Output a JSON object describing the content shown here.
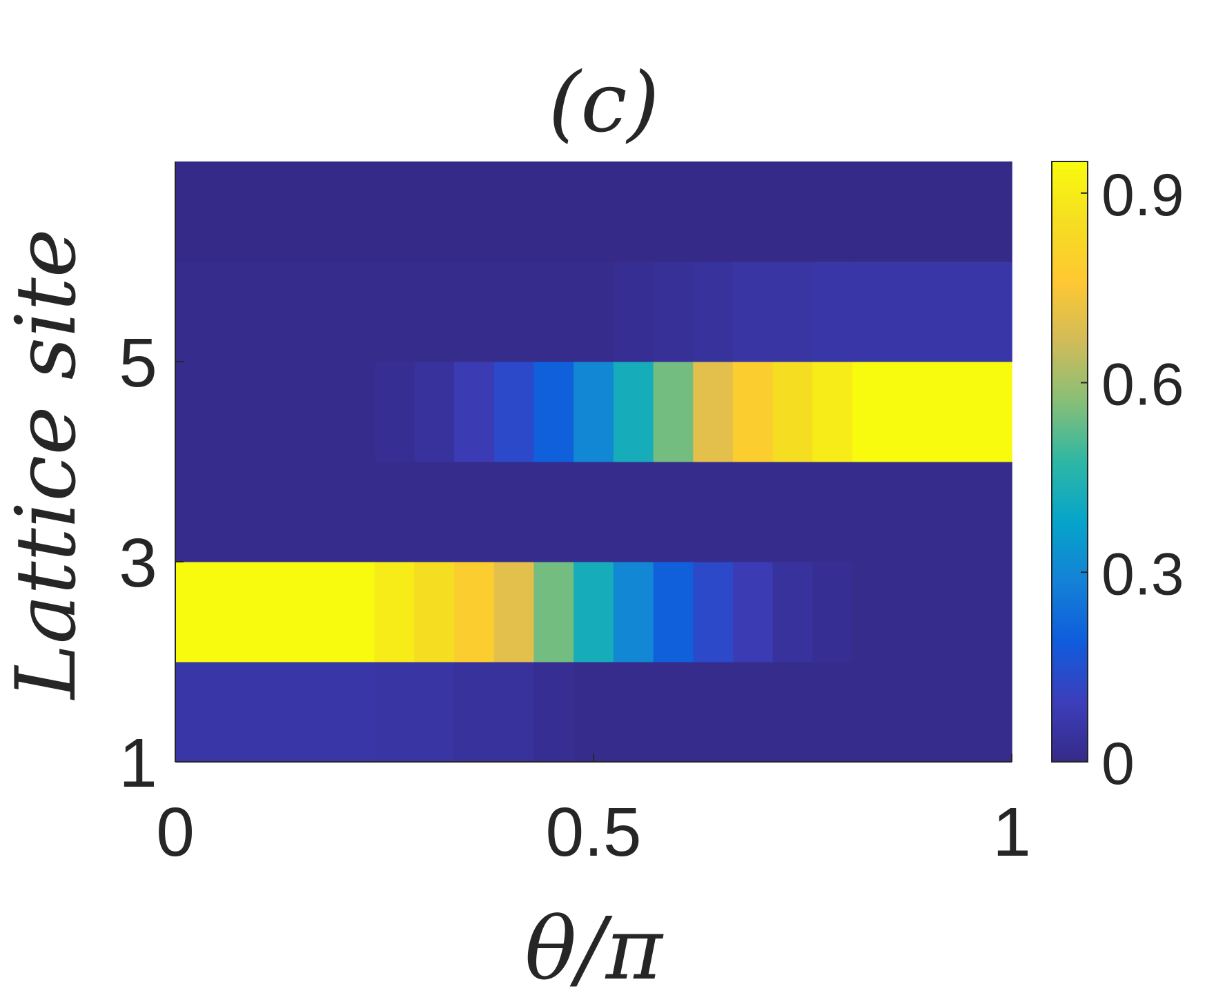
{
  "chart_data": {
    "type": "heatmap",
    "title": "(c)",
    "xlabel": "θ/π",
    "ylabel": "Lattice site",
    "xlim": [
      0,
      1
    ],
    "ylim": [
      1,
      6
    ],
    "x_ticks": [
      "0",
      "0.5",
      "1"
    ],
    "y_ticks": [
      "1",
      "3",
      "5"
    ],
    "y_tick_values": [
      1,
      3,
      5
    ],
    "x_tick_values": [
      0,
      0.5,
      1
    ],
    "grid": false,
    "colormap": "parula",
    "colorbar": {
      "range": [
        0,
        0.95
      ],
      "ticks": [
        "0",
        "0.3",
        "0.6",
        "0.9"
      ],
      "tick_values": [
        0,
        0.3,
        0.6,
        0.9
      ],
      "placement": "right"
    },
    "sites": [
      1,
      2,
      3,
      4,
      5,
      6
    ],
    "x": [
      0,
      0.05,
      0.1,
      0.15,
      0.2,
      0.25,
      0.3,
      0.35,
      0.4,
      0.45,
      0.5,
      0.55,
      0.6,
      0.65,
      0.7,
      0.75,
      0.8,
      0.85,
      0.9,
      0.95,
      1.0
    ],
    "rows": [
      {
        "site": 1,
        "values": [
          0.06,
          0.06,
          0.06,
          0.06,
          0.06,
          0.05,
          0.05,
          0.04,
          0.04,
          0.02,
          0.01,
          0.01,
          0.01,
          0.01,
          0.01,
          0.01,
          0.01,
          0.01,
          0.01,
          0.01,
          0.01
        ]
      },
      {
        "site": 2,
        "values": [
          0.95,
          0.95,
          0.95,
          0.95,
          0.95,
          0.9,
          0.85,
          0.78,
          0.7,
          0.55,
          0.42,
          0.3,
          0.2,
          0.13,
          0.08,
          0.04,
          0.02,
          0.01,
          0.01,
          0.01,
          0.01
        ]
      },
      {
        "site": 3,
        "values": [
          0.01,
          0.01,
          0.01,
          0.01,
          0.01,
          0.01,
          0.01,
          0.01,
          0.01,
          0.01,
          0.01,
          0.01,
          0.01,
          0.01,
          0.01,
          0.01,
          0.01,
          0.01,
          0.01,
          0.01,
          0.01
        ]
      },
      {
        "site": 4,
        "values": [
          0.01,
          0.01,
          0.01,
          0.01,
          0.01,
          0.02,
          0.04,
          0.08,
          0.13,
          0.2,
          0.3,
          0.42,
          0.55,
          0.7,
          0.78,
          0.85,
          0.9,
          0.95,
          0.95,
          0.95,
          0.95
        ]
      },
      {
        "site": 5,
        "values": [
          0.01,
          0.01,
          0.01,
          0.01,
          0.01,
          0.01,
          0.01,
          0.01,
          0.01,
          0.01,
          0.01,
          0.02,
          0.03,
          0.04,
          0.05,
          0.05,
          0.06,
          0.06,
          0.06,
          0.06,
          0.06
        ]
      },
      {
        "site": 6,
        "values": [
          0,
          0,
          0,
          0,
          0,
          0,
          0,
          0,
          0,
          0,
          0,
          0,
          0,
          0,
          0,
          0,
          0,
          0,
          0,
          0,
          0
        ]
      }
    ]
  }
}
